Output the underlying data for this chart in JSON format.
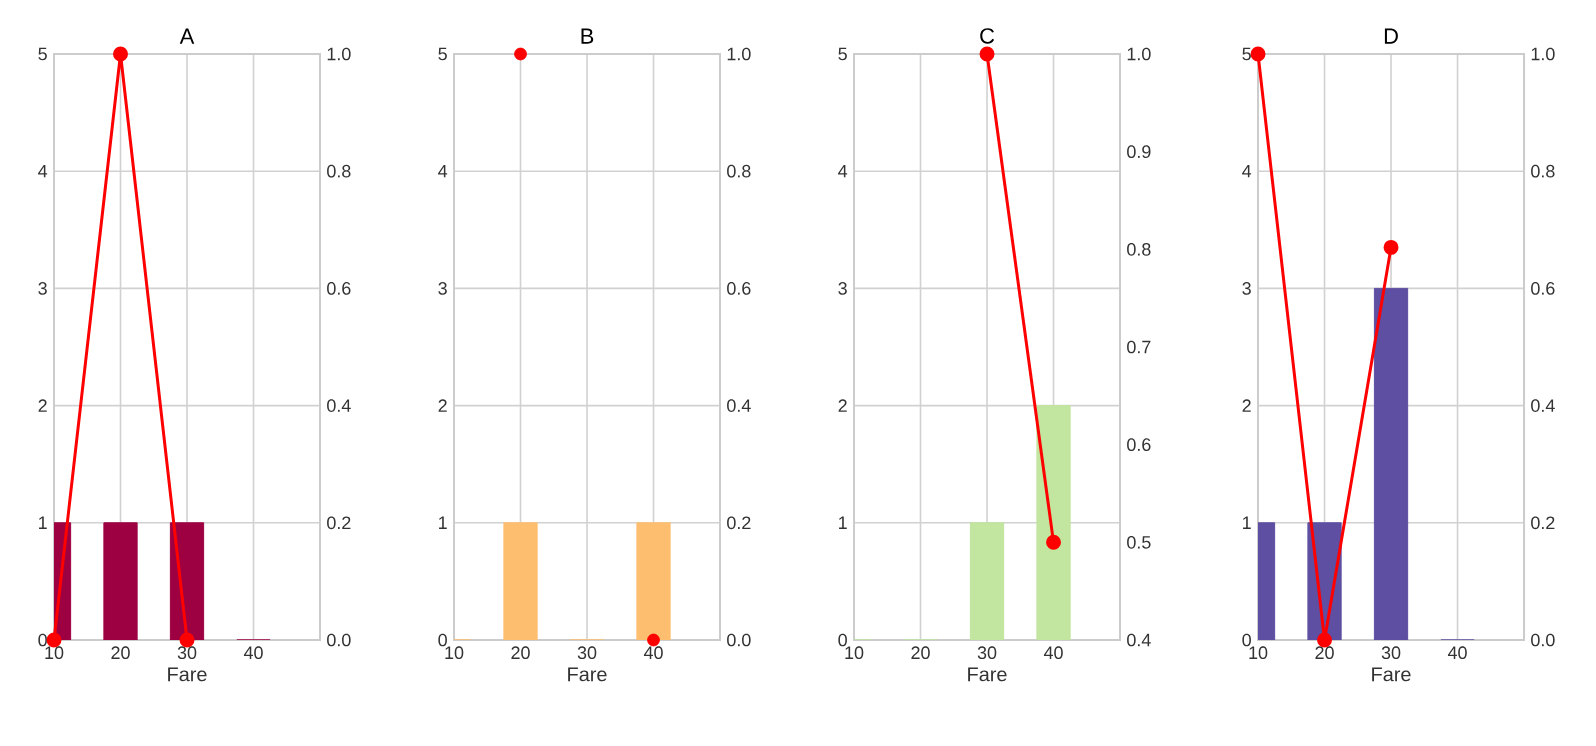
{
  "chart_data": [
    {
      "type": "bar",
      "title": "A",
      "xlabel": "Fare",
      "x": [
        10,
        20,
        30,
        40
      ],
      "xlim": [
        10,
        50
      ],
      "xticks": [
        10,
        20,
        30,
        40
      ],
      "ylim": [
        0,
        5
      ],
      "yticks": [
        0,
        1,
        2,
        3,
        4,
        5
      ],
      "y2lim": [
        0,
        1
      ],
      "y2ticks": [
        {
          "value": 0,
          "label": "0.0"
        },
        {
          "value": 0.2,
          "label": "0.2"
        },
        {
          "value": 0.4,
          "label": "0.4"
        },
        {
          "value": 0.6,
          "label": "0.6"
        },
        {
          "value": 0.8,
          "label": "0.8"
        },
        {
          "value": 1,
          "label": "1.0"
        }
      ],
      "grid": true,
      "marker": "circle",
      "series": [
        {
          "color": "#9e0142",
          "values": [
            1,
            1,
            1,
            0
          ]
        },
        {
          "type": "line",
          "axis": "y2",
          "color": "#ff0000",
          "x": [
            10,
            20,
            30
          ],
          "values": [
            0,
            1,
            0
          ]
        }
      ]
    },
    {
      "type": "bar",
      "title": "B",
      "xlabel": "Fare",
      "x": [
        10,
        20,
        30,
        40
      ],
      "xlim": [
        10,
        50
      ],
      "xticks": [
        10,
        20,
        30,
        40
      ],
      "ylim": [
        0,
        5
      ],
      "yticks": [
        0,
        1,
        2,
        3,
        4,
        5
      ],
      "y2lim": [
        0,
        1
      ],
      "y2ticks": [
        {
          "value": 0,
          "label": "0.0"
        },
        {
          "value": 0.2,
          "label": "0.2"
        },
        {
          "value": 0.4,
          "label": "0.4"
        },
        {
          "value": 0.6,
          "label": "0.6"
        },
        {
          "value": 0.8,
          "label": "0.8"
        },
        {
          "value": 1,
          "label": "1.0"
        }
      ],
      "grid": true,
      "marker": "circle",
      "series": [
        {
          "color": "#fdbf6f",
          "values": [
            0,
            1,
            0,
            1
          ]
        },
        {
          "type": "scatter",
          "axis": "y2",
          "color": "#ff0000",
          "x": [
            20,
            40
          ],
          "values": [
            1,
            0
          ]
        }
      ]
    },
    {
      "type": "bar",
      "title": "C",
      "xlabel": "Fare",
      "x": [
        10,
        20,
        30,
        40
      ],
      "xlim": [
        10,
        50
      ],
      "xticks": [
        10,
        20,
        30,
        40
      ],
      "ylim": [
        0,
        5
      ],
      "yticks": [
        0,
        1,
        2,
        3,
        4,
        5
      ],
      "y2lim": [
        0.4,
        1
      ],
      "y2ticks": [
        0.4,
        0.5,
        0.6,
        0.7,
        0.8,
        0.9,
        {
          "value": 1,
          "label": "1.0"
        }
      ],
      "grid": true,
      "marker": "circle",
      "series": [
        {
          "color": "#c2e59f",
          "values": [
            0,
            0,
            1,
            2
          ]
        },
        {
          "type": "line",
          "axis": "y2",
          "color": "#ff0000",
          "x": [
            30,
            40
          ],
          "values": [
            1,
            0.5
          ]
        }
      ]
    },
    {
      "type": "bar",
      "title": "D",
      "xlabel": "Fare",
      "x": [
        10,
        20,
        30,
        40
      ],
      "xlim": [
        10,
        50
      ],
      "xticks": [
        10,
        20,
        30,
        40
      ],
      "ylim": [
        0,
        5
      ],
      "yticks": [
        0,
        1,
        2,
        3,
        4,
        5
      ],
      "y2lim": [
        0,
        1
      ],
      "y2ticks": [
        {
          "value": 0,
          "label": "0.0"
        },
        {
          "value": 0.2,
          "label": "0.2"
        },
        {
          "value": 0.4,
          "label": "0.4"
        },
        {
          "value": 0.6,
          "label": "0.6"
        },
        {
          "value": 0.8,
          "label": "0.8"
        },
        {
          "value": 1,
          "label": "1.0"
        }
      ],
      "grid": true,
      "marker": "circle",
      "series": [
        {
          "color": "#5e4fa2",
          "values": [
            1,
            1,
            3,
            0
          ]
        },
        {
          "type": "line",
          "axis": "y2",
          "color": "#ff0000",
          "x": [
            10,
            20,
            30
          ],
          "values": [
            1,
            0,
            0.67
          ]
        }
      ]
    }
  ]
}
